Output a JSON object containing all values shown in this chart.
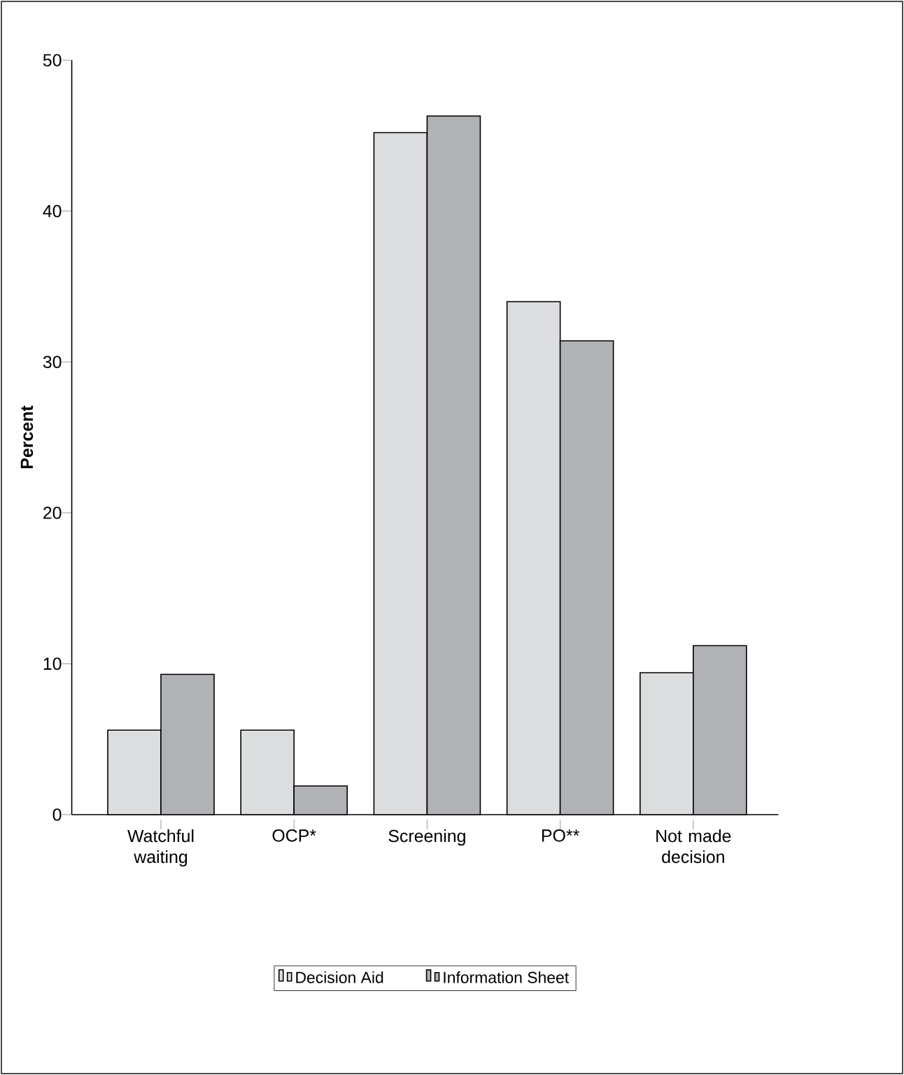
{
  "chart_data": {
    "type": "bar",
    "ylabel": "Percent",
    "categories": [
      "Watchful waiting",
      "OCP*",
      "Screening",
      "PO**",
      "Not made decision"
    ],
    "series": [
      {
        "name": "Decision Aid",
        "color": "#dcdddf",
        "values": [
          5.6,
          5.6,
          45.2,
          34.0,
          9.4
        ]
      },
      {
        "name": "Information Sheet",
        "color": "#b1b2b5",
        "values": [
          9.3,
          1.9,
          46.3,
          31.4,
          11.2
        ]
      }
    ],
    "ylim": [
      0,
      50
    ],
    "yticks": [
      0,
      10,
      20,
      30,
      40,
      50
    ],
    "legend": "bottom",
    "grid": false
  }
}
